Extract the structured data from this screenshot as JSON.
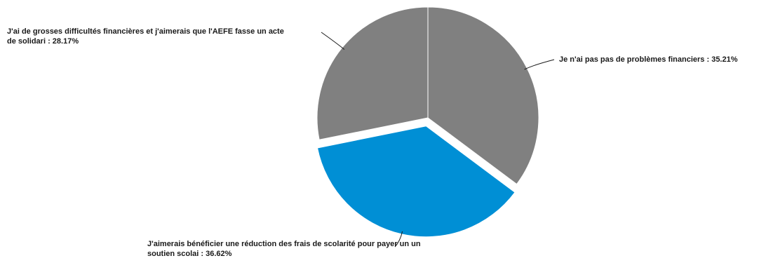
{
  "chart_data": {
    "type": "pie",
    "title": "",
    "slices": [
      {
        "label": "Je n'ai pas pas de problèmes financiers : 35.21%",
        "value": 35.21,
        "color": "#808080",
        "exploded": false
      },
      {
        "label": "J'aimerais bénéficier une réduction des frais de scolarité pour payer un un soutien scolai : 36.62%",
        "value": 36.62,
        "color": "#008fd5",
        "exploded": true
      },
      {
        "label": "J'ai de grosses difficultés financières et j'aimerais que l'AEFE fasse un acte de solidari : 28.17%",
        "value": 28.17,
        "color": "#808080",
        "exploded": false
      }
    ],
    "label_lines": {
      "s0": "Je n'ai pas pas de problèmes financiers : 35.21%",
      "s1_line1": "J'aimerais bénéficier une réduction des frais de scolarité pour payer un un",
      "s1_line2": "soutien scolai : 36.62%",
      "s2_line1": "J'ai de grosses difficultés financières et j'aimerais que l'AEFE fasse un acte",
      "s2_line2": "de solidari : 28.17%"
    },
    "legend": "none"
  }
}
